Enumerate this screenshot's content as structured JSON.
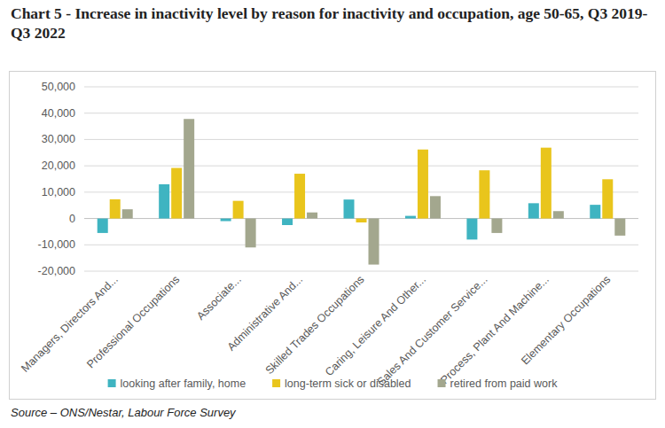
{
  "chart_data": {
    "type": "bar",
    "title": "Chart 5 - Increase in inactivity level by reason for inactivity and occupation, age 50-65, Q3 2019-Q3 2022",
    "source": "Source – ONS/Nestar, Labour Force Survey",
    "categories": [
      "Managers, Directors And...",
      "Professional Occupations",
      "Associate...",
      "Administrative And...",
      "Skilled Trades Occupations",
      "Caring, Leisure And Other...",
      "Sales And Customer Service...",
      "Process, Plant And Machine...",
      "Elementary Occupations"
    ],
    "series": [
      {
        "name": "looking after family, home",
        "color": "#3fb4c1",
        "values": [
          -5500,
          13000,
          -1000,
          -2500,
          7200,
          1000,
          -8000,
          5800,
          5200
        ]
      },
      {
        "name": "long-term sick or disabled",
        "color": "#e9c51c",
        "values": [
          7300,
          19200,
          6700,
          17000,
          -1500,
          26200,
          18300,
          26900,
          14900
        ]
      },
      {
        "name": "retired from paid work",
        "color": "#a3a78e",
        "values": [
          3500,
          37800,
          -11000,
          2300,
          -17500,
          8500,
          -5500,
          2800,
          -6500
        ]
      }
    ],
    "ylim": [
      -20000,
      50000
    ],
    "yticks": [
      {
        "value": -20000,
        "label": "-20,000"
      },
      {
        "value": -10000,
        "label": "-10,000"
      },
      0,
      {
        "value": 10000,
        "label": "10,000"
      },
      {
        "value": 20000,
        "label": "20,000"
      },
      {
        "value": 30000,
        "label": "30,000"
      },
      {
        "value": 40000,
        "label": "40,000"
      },
      {
        "value": 50000,
        "label": "50,000"
      }
    ],
    "grid": true,
    "legend": "bottom"
  }
}
